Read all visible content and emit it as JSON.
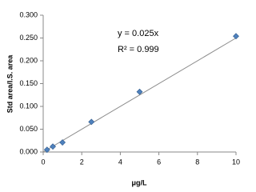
{
  "chart_data": {
    "type": "scatter",
    "x_label": "μg/L",
    "y_label": "Std area/I.S. area",
    "annotations": [
      "y = 0.025x",
      "R² = 0.999"
    ],
    "series": [
      {
        "color": "#4f81bd",
        "x": [
          0.2,
          0.5,
          1,
          2.5,
          5,
          10
        ],
        "values": [
          0.005,
          0.012,
          0.021,
          0.066,
          0.132,
          0.254
        ]
      }
    ],
    "trendline": {
      "color": "#8c8c8c",
      "x": [
        0,
        10
      ],
      "values": [
        0,
        0.25
      ]
    },
    "xlim": [
      0,
      10
    ],
    "xticks": [
      0,
      2,
      4,
      6,
      8,
      10
    ],
    "ylim": [
      0,
      0.3
    ],
    "yticks": [
      {
        "value": 0,
        "label": "0.000"
      },
      {
        "value": 0.05,
        "label": "0.050"
      },
      {
        "value": 0.1,
        "label": "0.100"
      },
      {
        "value": 0.15,
        "label": "0.150"
      },
      {
        "value": 0.2,
        "label": "0.200"
      },
      {
        "value": 0.25,
        "label": "0.250"
      },
      {
        "value": 0.3,
        "label": "0.300"
      }
    ]
  }
}
